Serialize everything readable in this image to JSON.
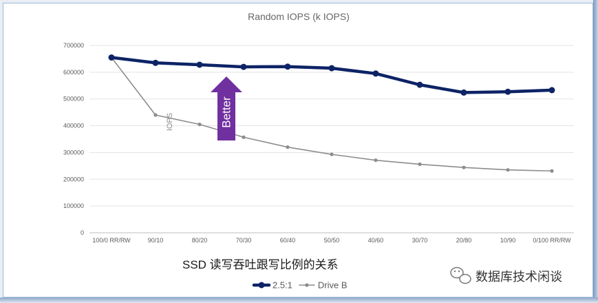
{
  "chart_data": {
    "type": "line",
    "title": "Random IOPS (k IOPS)",
    "categories": [
      "100/0 RR/RW",
      "90/10",
      "80/20",
      "70/30",
      "60/40",
      "50/50",
      "40/60",
      "30/70",
      "20/80",
      "10/90",
      "0/100 RR/RW"
    ],
    "ylim": [
      0,
      700000
    ],
    "yticks": [
      0,
      100000,
      200000,
      300000,
      400000,
      500000,
      600000,
      700000
    ],
    "ytick_labels": [
      "0",
      "100000",
      "200000",
      "300000",
      "400000",
      "500000",
      "600000",
      "700000"
    ],
    "series": [
      {
        "name": "2.5:1",
        "color": "#0d2366",
        "values": [
          655000,
          635000,
          628000,
          620000,
          621000,
          615000,
          595000,
          553000,
          524000,
          527000,
          533000
        ]
      },
      {
        "name": "Drive B",
        "color": "#8c8c8c",
        "values": [
          655000,
          440000,
          405000,
          357000,
          320000,
          293000,
          271000,
          256000,
          244000,
          235000,
          231000
        ]
      }
    ],
    "grid": true,
    "legend": "bottom-center",
    "annotations": {
      "vertical_label": "IOPS",
      "arrow_label": "Better",
      "arrow_color": "#7030a0",
      "arrow_value": 520000
    }
  },
  "caption": "SSD 读写吞吐跟写比例的关系",
  "watermark": {
    "text": "数据库技术闲谈",
    "icon": "wechat-icon"
  }
}
